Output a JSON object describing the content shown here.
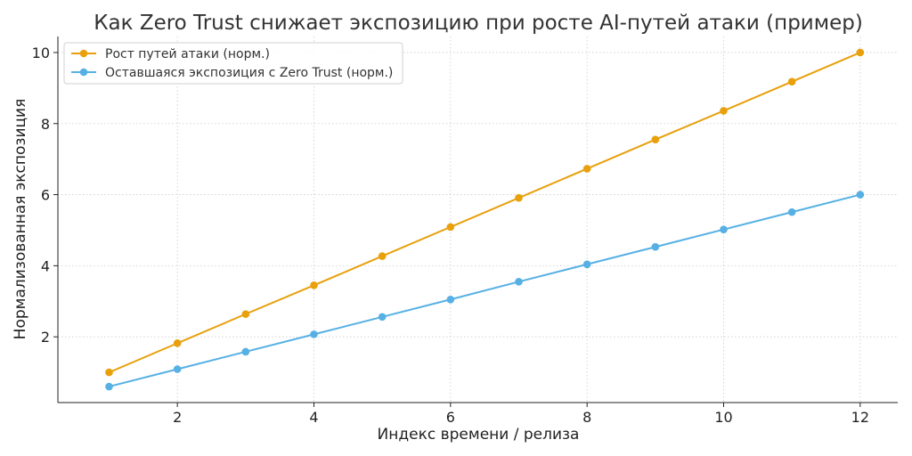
{
  "chart_data": {
    "type": "line",
    "title": "Как Zero Trust снижает экспозицию при росте AI-путей атаки (пример)",
    "xlabel": "Индекс времени / релиза",
    "ylabel": "Нормализованная экспозиция",
    "x": [
      1,
      2,
      3,
      4,
      5,
      6,
      7,
      8,
      9,
      10,
      11,
      12
    ],
    "xlim": [
      0.25,
      12.55
    ],
    "ylim": [
      0.15,
      10.45
    ],
    "xticks": [
      "2",
      "4",
      "6",
      "8",
      "10",
      "12"
    ],
    "yticks": [
      "2",
      "4",
      "6",
      "8",
      "10"
    ],
    "grid": true,
    "legend_position": "top-left",
    "series": [
      {
        "name": "Рост путей атаки (норм.)",
        "color": "#e8a00c",
        "values": [
          1.0,
          1.82,
          2.64,
          3.45,
          4.27,
          5.09,
          5.91,
          6.73,
          7.55,
          8.36,
          9.18,
          10.0
        ]
      },
      {
        "name": "Оставшаяся экспозиция с Zero Trust (норм.)",
        "color": "#56b0e4",
        "values": [
          0.6,
          1.09,
          1.58,
          2.07,
          2.56,
          3.05,
          3.55,
          4.04,
          4.53,
          5.02,
          5.51,
          6.0
        ]
      }
    ]
  }
}
